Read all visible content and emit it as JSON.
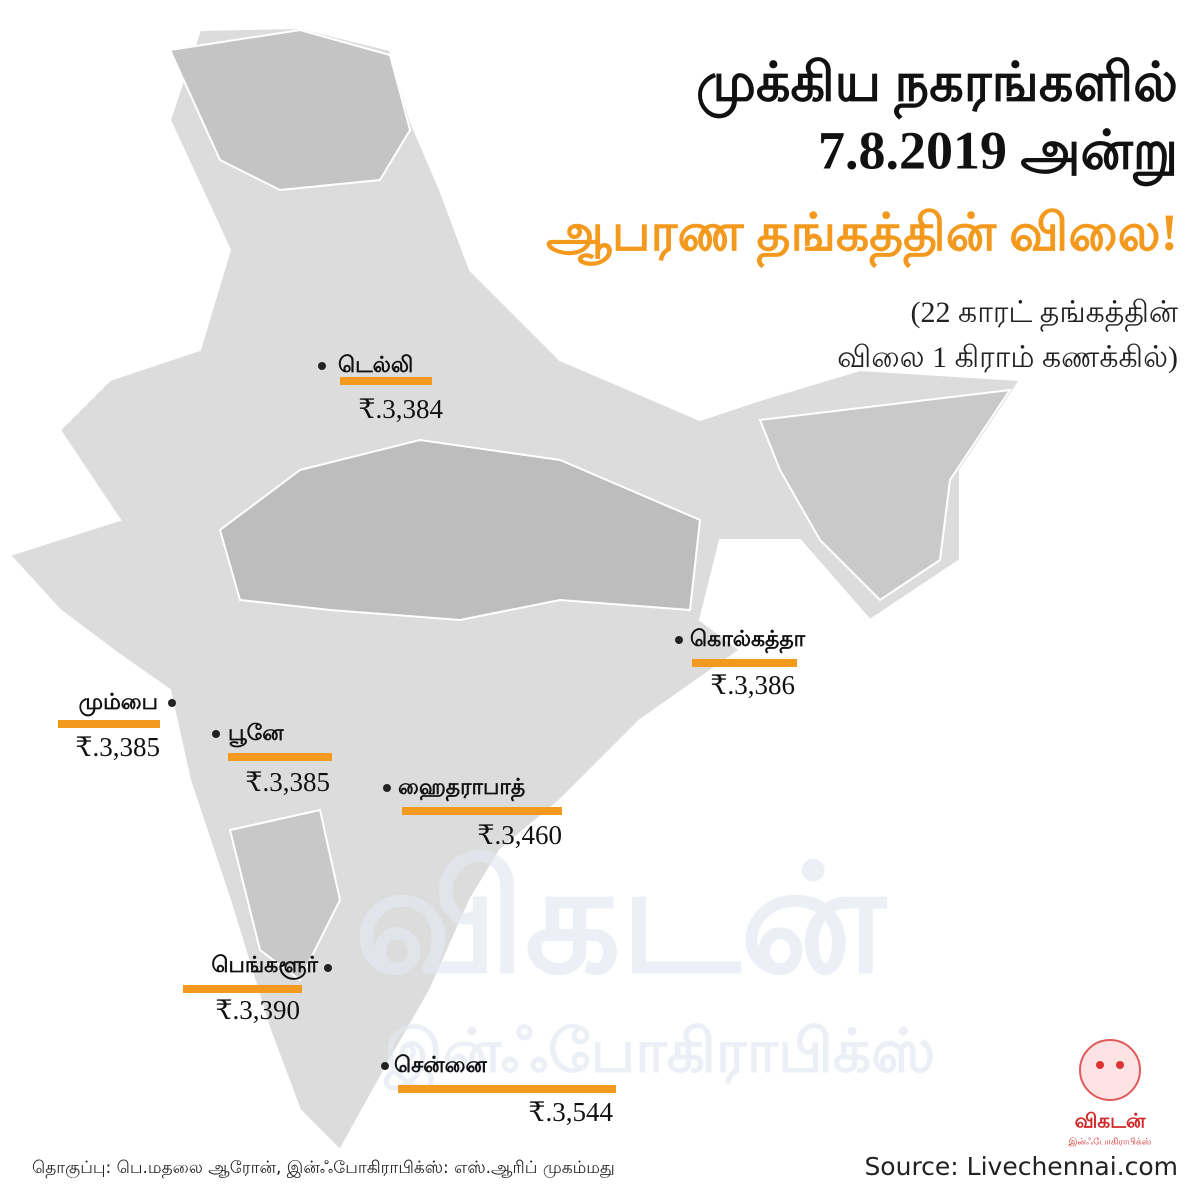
{
  "header": {
    "title_lines": [
      "முக்கிய நகரங்களில்",
      "7.8.2019 அன்று"
    ],
    "highlight": "ஆபரண தங்கத்தின் விலை!",
    "subtitle_lines": [
      "(22 காரட் தங்கத்தின்",
      "விலை 1 கிராம் கணக்கில்)"
    ]
  },
  "cities": [
    {
      "name": "டெல்லி",
      "price": "₹.3,384"
    },
    {
      "name": "கொல்கத்தா",
      "price": "₹.3,386"
    },
    {
      "name": "மும்பை",
      "price": "₹.3,385"
    },
    {
      "name": "பூனே",
      "price": "₹.3,385"
    },
    {
      "name": "ஹைதராபாத்",
      "price": "₹.3,460"
    },
    {
      "name": "பெங்களூர்",
      "price": "₹.3,390"
    },
    {
      "name": "சென்னை",
      "price": "₹.3,544"
    }
  ],
  "footer": {
    "credits": "தொகுப்பு: பெ.மதலை ஆரோன், இன்ஃபோகிராபிக்ஸ்: எஸ்.ஆரிப் முகம்மது",
    "source": "Source: Livechennai.com"
  },
  "logo": {
    "brand": "விகடன்",
    "tagline": "இன்ஃபோகிராபிக்ஸ்"
  }
}
